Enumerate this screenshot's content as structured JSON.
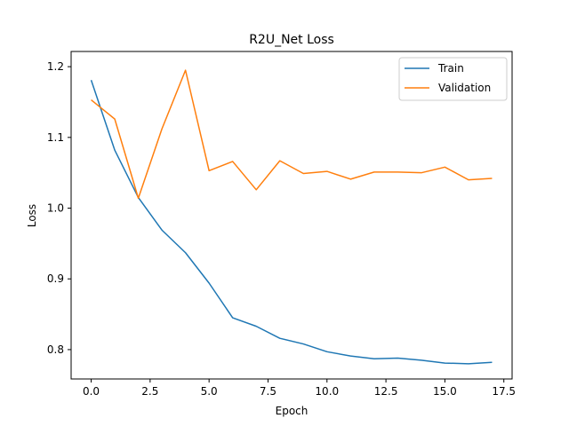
{
  "chart_data": {
    "type": "line",
    "title": "R2U_Net Loss",
    "xlabel": "Epoch",
    "ylabel": "Loss",
    "xlim": [
      -0.85,
      17.85
    ],
    "ylim": [
      0.7585,
      1.2215
    ],
    "x_ticks": [
      0.0,
      2.5,
      5.0,
      7.5,
      10.0,
      12.5,
      15.0,
      17.5
    ],
    "x_tick_labels": [
      "0.0",
      "2.5",
      "5.0",
      "7.5",
      "10.0",
      "12.5",
      "15.0",
      "17.5"
    ],
    "y_ticks": [
      0.8,
      0.9,
      1.0,
      1.1,
      1.2
    ],
    "y_tick_labels": [
      "0.8",
      "0.9",
      "1.0",
      "1.1",
      "1.2"
    ],
    "grid": false,
    "legend_position": "upper right",
    "x": [
      0,
      1,
      2,
      3,
      4,
      5,
      6,
      7,
      8,
      9,
      10,
      11,
      12,
      13,
      14,
      15,
      16,
      17
    ],
    "series": [
      {
        "name": "Train",
        "color": "#1f77b4",
        "values": [
          1.181,
          1.082,
          1.015,
          0.969,
          0.937,
          0.894,
          0.845,
          0.833,
          0.816,
          0.808,
          0.797,
          0.791,
          0.787,
          0.788,
          0.785,
          0.781,
          0.78,
          0.782
        ]
      },
      {
        "name": "Validation",
        "color": "#ff7f0e",
        "values": [
          1.153,
          1.126,
          1.014,
          1.112,
          1.195,
          1.053,
          1.066,
          1.026,
          1.067,
          1.049,
          1.052,
          1.041,
          1.051,
          1.051,
          1.05,
          1.058,
          1.04,
          1.042
        ]
      }
    ]
  }
}
